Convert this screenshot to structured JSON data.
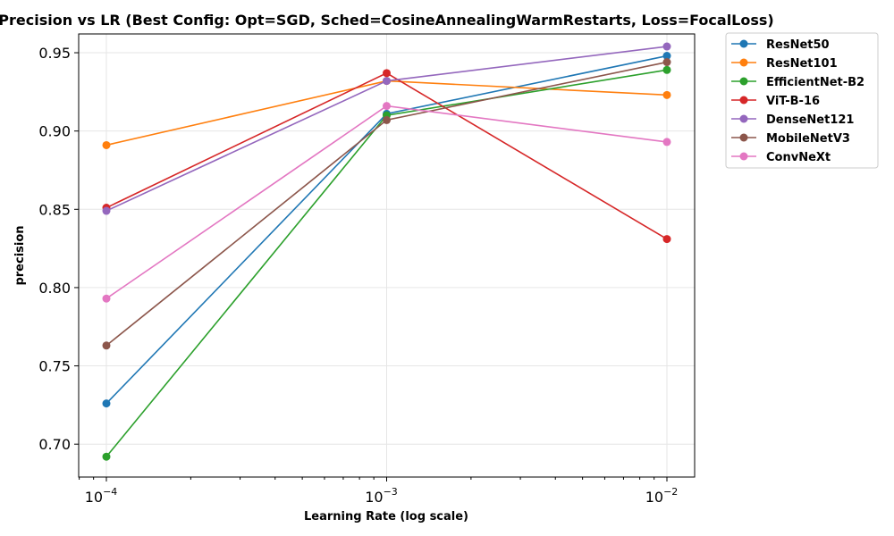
{
  "chart_data": {
    "type": "line",
    "title": "Precision vs LR (Best Config: Opt=SGD, Sched=CosineAnnealingWarmRestarts, Loss=FocalLoss)",
    "xlabel": "Learning Rate (log scale)",
    "ylabel": "precision",
    "xscale": "log",
    "x": [
      0.0001,
      0.001,
      0.01
    ],
    "x_tick_labels": [
      {
        "base": "10",
        "exp": "−4"
      },
      {
        "base": "10",
        "exp": "−3"
      },
      {
        "base": "10",
        "exp": "−2"
      }
    ],
    "y_ticks": [
      "0.70",
      "0.75",
      "0.80",
      "0.85",
      "0.90",
      "0.95"
    ],
    "ylim": [
      0.679,
      0.962
    ],
    "grid": true,
    "legend_position": "outside-right",
    "series": [
      {
        "name": "ResNet50",
        "color": "#1f77b4",
        "values": [
          0.726,
          0.911,
          0.948
        ]
      },
      {
        "name": "ResNet101",
        "color": "#ff7f0e",
        "values": [
          0.891,
          0.932,
          0.923
        ]
      },
      {
        "name": "EfficientNet-B2",
        "color": "#2ca02c",
        "values": [
          0.692,
          0.91,
          0.939
        ]
      },
      {
        "name": "ViT-B-16",
        "color": "#d62728",
        "values": [
          0.851,
          0.937,
          0.831
        ]
      },
      {
        "name": "DenseNet121",
        "color": "#9467bd",
        "values": [
          0.849,
          0.932,
          0.954
        ]
      },
      {
        "name": "MobileNetV3",
        "color": "#8c564b",
        "values": [
          0.763,
          0.907,
          0.944
        ]
      },
      {
        "name": "ConvNeXt",
        "color": "#e377c2",
        "values": [
          0.793,
          0.916,
          0.893
        ]
      }
    ]
  }
}
